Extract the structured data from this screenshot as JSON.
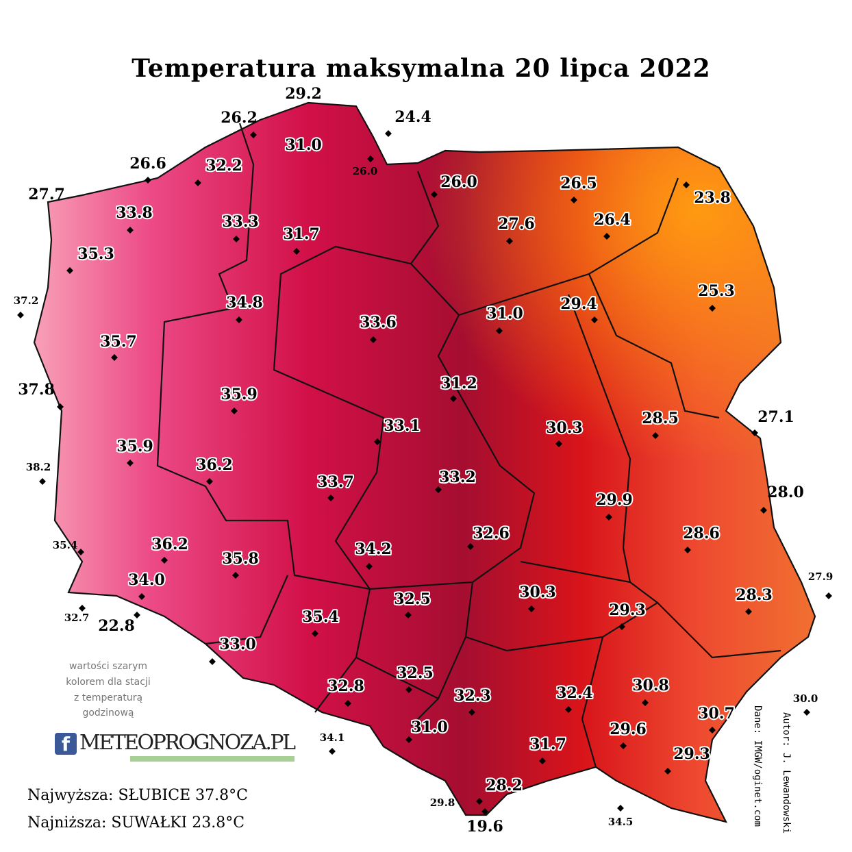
{
  "title": "Temperatura maksymalna 20 lipca 2022",
  "stations": [
    "29.2",
    "26.2",
    "24.4",
    "26.6",
    "27.7",
    "37.2",
    "37.8",
    "38.2",
    "35.4",
    "32.7",
    "22.8",
    "34.1",
    "29.8",
    "19.6",
    "34.5",
    "27.1",
    "28.0",
    "27.9",
    "30.0",
    "26.0",
    "31.0",
    "32.2",
    "33.8",
    "33.3",
    "31.7",
    "35.3",
    "26.0",
    "26.5",
    "23.8",
    "27.6",
    "26.4",
    "34.8",
    "33.6",
    "31.0",
    "29.4",
    "25.3",
    "35.7",
    "31.2",
    "35.9",
    "33.1",
    "30.3",
    "28.5",
    "35.9",
    "36.2",
    "33.7",
    "33.2",
    "29.9",
    "32.6",
    "28.6",
    "36.2",
    "35.8",
    "34.2",
    "34.0",
    "30.3",
    "29.3",
    "28.3",
    "32.5",
    "35.4",
    "33.0",
    "32.5",
    "32.8",
    "32.3",
    "32.4",
    "30.8",
    "30.7",
    "31.0",
    "29.6",
    "31.7",
    "29.3",
    "28.2"
  ],
  "note": [
    "wartości szarym",
    "kolorem dla stacji",
    "z temperaturą",
    "godzinową"
  ],
  "logo": {
    "icon": "f",
    "text": "METEOPROGNOZA.PL"
  },
  "extremes": {
    "highest": "Najwyższa: SŁUBICE 37.8°C",
    "lowest": "Najniższa: SUWAŁKI 23.8°C"
  },
  "credits": {
    "data": "Dane: IMGW/oginet.com",
    "author": "Autor: J. Lewandowski"
  }
}
